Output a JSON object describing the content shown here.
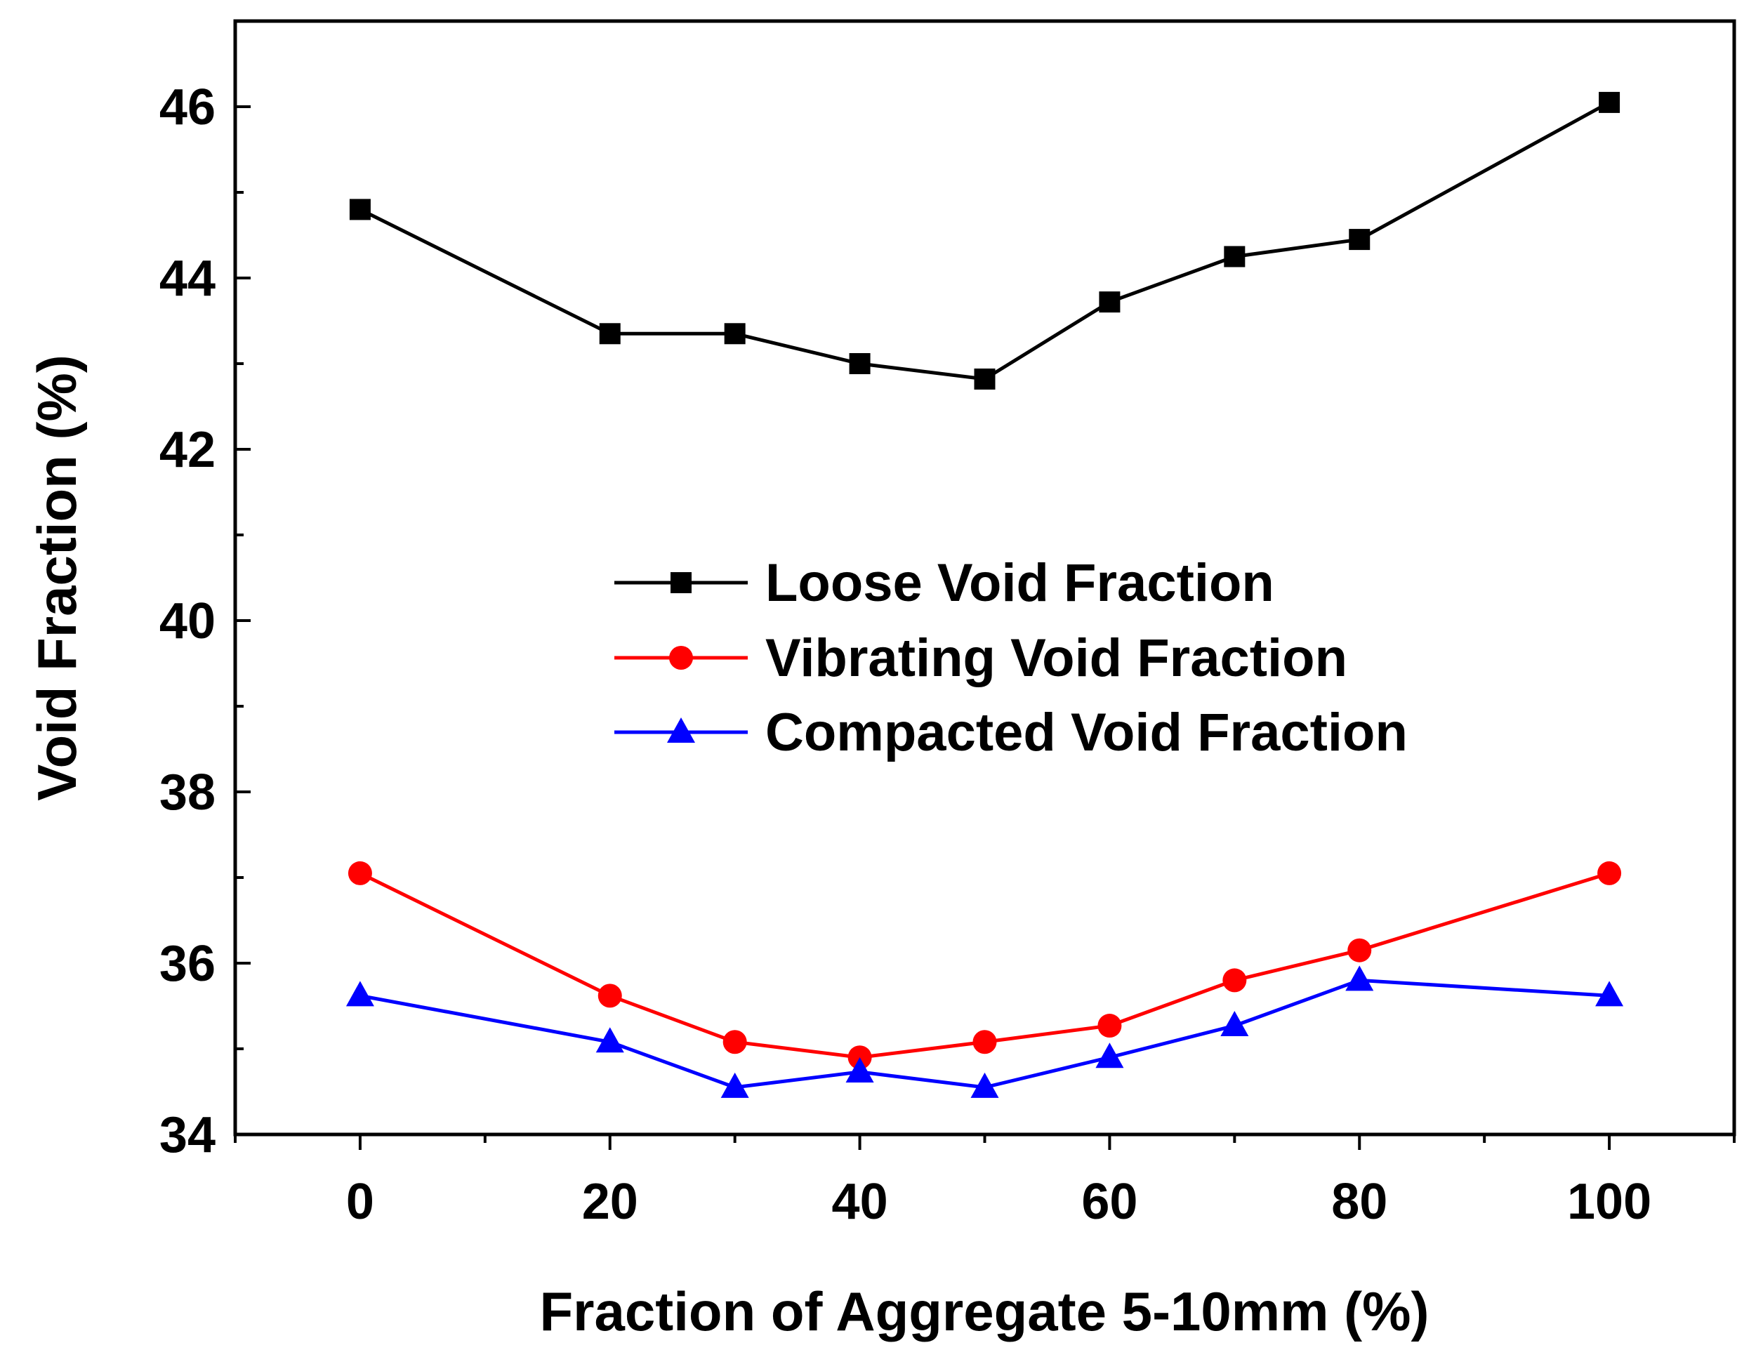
{
  "chart_data": {
    "type": "line",
    "title": "",
    "xlabel": "Fraction of Aggregate 5-10mm (%)",
    "ylabel": "Void Fraction (%)",
    "xlim": [
      -10,
      110
    ],
    "ylim": [
      34,
      47
    ],
    "x_ticks": [
      0,
      20,
      40,
      60,
      80,
      100
    ],
    "x_tick_labels": [
      "0",
      "20",
      "40",
      "60",
      "80",
      "100"
    ],
    "y_ticks": [
      34,
      36,
      38,
      40,
      42,
      44,
      46
    ],
    "y_tick_labels": [
      "34",
      "36",
      "38",
      "40",
      "42",
      "44",
      "46"
    ],
    "grid": false,
    "legend_position": "center",
    "x": [
      0,
      20,
      30,
      40,
      50,
      60,
      70,
      80,
      100
    ],
    "series": [
      {
        "name": "Loose Void Fraction",
        "color": "#000000",
        "marker": "square",
        "values": [
          44.8,
          43.35,
          43.35,
          43.0,
          42.82,
          43.72,
          44.25,
          44.45,
          46.05
        ]
      },
      {
        "name": "Vibrating Void Fraction",
        "color": "#ff0000",
        "marker": "circle",
        "values": [
          37.05,
          35.62,
          35.08,
          34.9,
          35.08,
          35.27,
          35.8,
          36.15,
          37.05
        ]
      },
      {
        "name": "Compacted Void Fraction",
        "color": "#0000ff",
        "marker": "triangle",
        "values": [
          35.62,
          35.08,
          34.55,
          34.73,
          34.55,
          34.9,
          35.27,
          35.8,
          35.62
        ]
      }
    ]
  }
}
